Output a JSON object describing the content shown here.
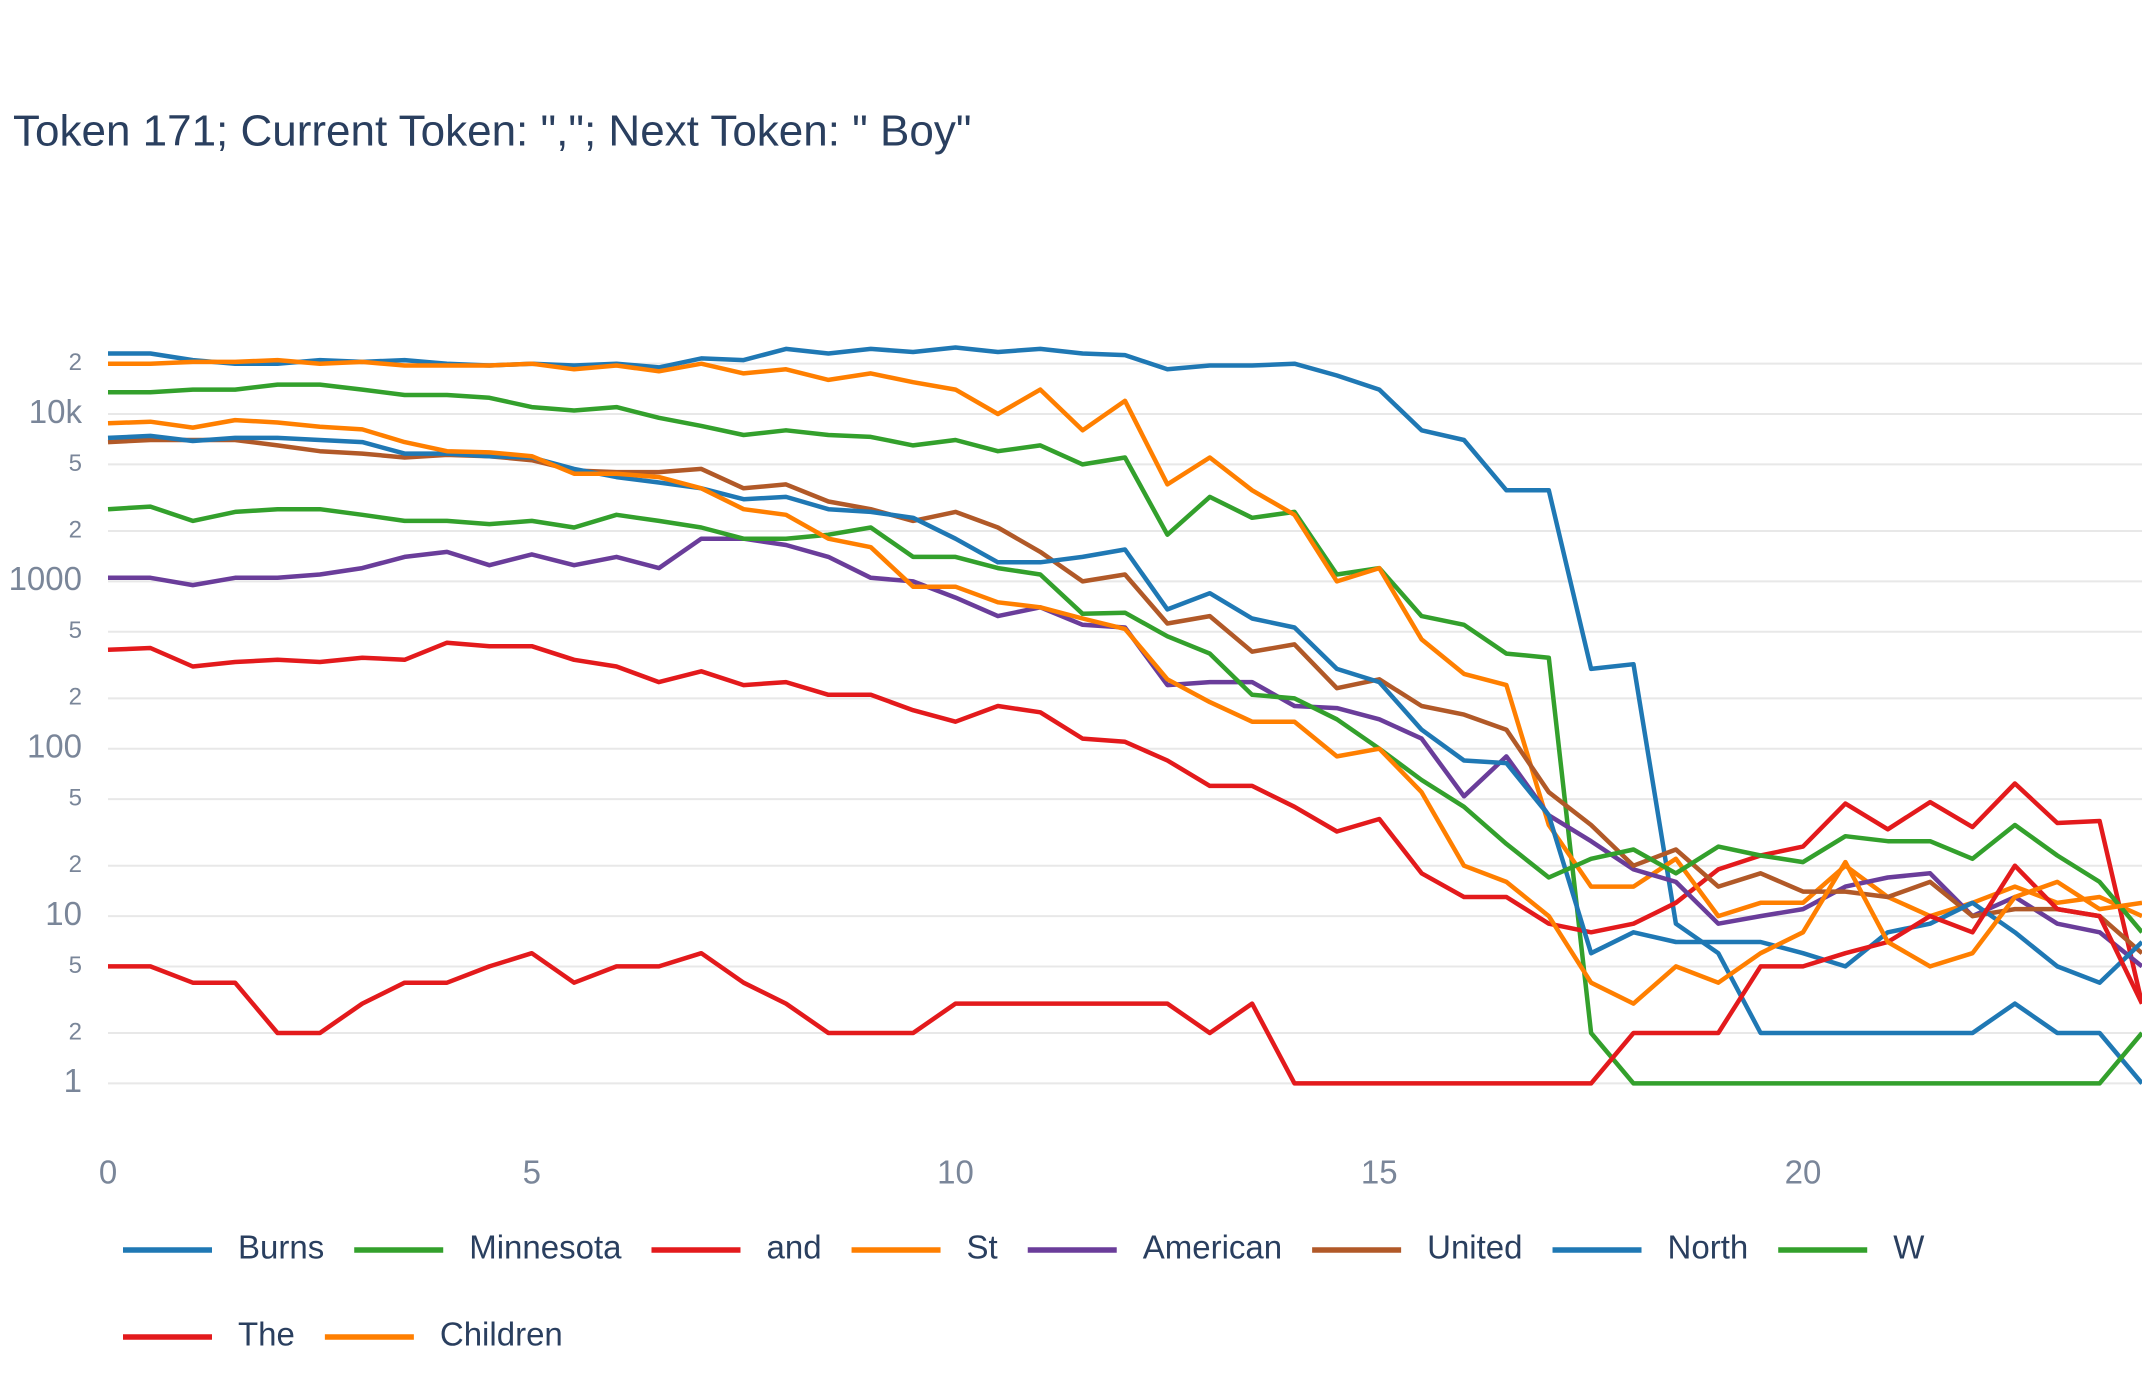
{
  "chart_data": {
    "type": "line",
    "title": "Token 171; Current Token: \",\"; Next Token: \" Boy\"",
    "log_y": true,
    "grid": true,
    "x": [
      0,
      0.5,
      1,
      1.5,
      2,
      2.5,
      3,
      3.5,
      4,
      4.5,
      5,
      5.5,
      6,
      6.5,
      7,
      7.5,
      8,
      8.5,
      9,
      9.5,
      10,
      10.5,
      11,
      11.5,
      12,
      12.5,
      13,
      13.5,
      14,
      14.5,
      15,
      15.5,
      16,
      16.5,
      17,
      17.5,
      18,
      18.5,
      19,
      19.5,
      20,
      20.5,
      21,
      21.5,
      22,
      22.5,
      23,
      23.5,
      24
    ],
    "xlim": [
      0,
      24
    ],
    "xticks": [
      0,
      5,
      10,
      15,
      20
    ],
    "ylim": [
      0.4,
      35000
    ],
    "yticks": [
      1,
      2,
      5,
      10,
      {
        "value": 20,
        "label": "2"
      },
      {
        "value": 50,
        "label": "5"
      },
      100,
      {
        "value": 200,
        "label": "2"
      },
      {
        "value": 500,
        "label": "5"
      },
      1000,
      {
        "value": 2000,
        "label": "2"
      },
      {
        "value": 5000,
        "label": "5"
      },
      {
        "value": 10000,
        "label": "10k"
      },
      {
        "value": 20000,
        "label": "2"
      }
    ],
    "series": [
      {
        "name": "Burns",
        "color": "#1f78b4",
        "values": [
          23000,
          23000,
          21000,
          20000,
          20000,
          21000,
          20500,
          21000,
          20000,
          19500,
          20000,
          19500,
          20000,
          19000,
          21500,
          21000,
          24500,
          23000,
          24500,
          23500,
          25000,
          23500,
          24500,
          23000,
          22500,
          18500,
          19500,
          19500,
          20000,
          17000,
          14000,
          8000,
          7000,
          3500,
          3500,
          300,
          320,
          9,
          6,
          2,
          2,
          2,
          2,
          2,
          2,
          3,
          2,
          2,
          1
        ]
      },
      {
        "name": "Minnesota",
        "color": "#33a02c",
        "values": [
          13500,
          13500,
          14000,
          14000,
          15000,
          15000,
          14000,
          13000,
          13000,
          12500,
          11000,
          10500,
          11000,
          9500,
          8500,
          7500,
          8000,
          7500,
          7300,
          6500,
          7000,
          6000,
          6500,
          5000,
          5500,
          1900,
          3200,
          2400,
          2600,
          1100,
          1200,
          620,
          550,
          370,
          350,
          2,
          1,
          1,
          1,
          1,
          1,
          1,
          1,
          1,
          1,
          1,
          1,
          1,
          2
        ]
      },
      {
        "name": "and",
        "color": "#e31a1c",
        "values": [
          390,
          400,
          310,
          330,
          340,
          330,
          350,
          340,
          430,
          410,
          410,
          340,
          310,
          250,
          290,
          240,
          250,
          210,
          210,
          170,
          145,
          180,
          165,
          115,
          110,
          85,
          60,
          60,
          45,
          32,
          38,
          18,
          13,
          13,
          9,
          8,
          9,
          12,
          19,
          23,
          26,
          47,
          33,
          48,
          34,
          62,
          36,
          37,
          3
        ]
      },
      {
        "name": "St",
        "color": "#ff7f00",
        "values": [
          20000,
          20000,
          20500,
          20500,
          21000,
          20000,
          20500,
          19500,
          19500,
          19500,
          20000,
          18500,
          19500,
          18000,
          20000,
          17500,
          18500,
          16000,
          17500,
          15500,
          14000,
          10000,
          14000,
          8000,
          12000,
          3800,
          5500,
          3500,
          2500,
          1000,
          1200,
          450,
          280,
          240,
          35,
          15,
          15,
          22,
          10,
          12,
          12,
          20,
          13,
          10,
          12,
          15,
          12,
          13,
          10
        ]
      },
      {
        "name": "American",
        "color": "#6a3d9a",
        "values": [
          1050,
          1050,
          950,
          1050,
          1050,
          1100,
          1200,
          1400,
          1500,
          1250,
          1450,
          1250,
          1400,
          1200,
          1800,
          1800,
          1650,
          1400,
          1050,
          1000,
          800,
          620,
          700,
          550,
          530,
          240,
          250,
          250,
          180,
          175,
          150,
          115,
          52,
          90,
          40,
          28,
          19,
          16,
          9,
          10,
          11,
          15,
          17,
          18,
          10,
          13,
          9,
          8,
          5
        ]
      },
      {
        "name": "United",
        "color": "#b15928",
        "values": [
          6800,
          7000,
          7000,
          7000,
          6500,
          6000,
          5800,
          5500,
          5700,
          5600,
          5300,
          4600,
          4500,
          4500,
          4700,
          3600,
          3800,
          3000,
          2700,
          2300,
          2600,
          2100,
          1500,
          1000,
          1100,
          560,
          620,
          380,
          420,
          230,
          260,
          180,
          160,
          130,
          55,
          35,
          20,
          25,
          15,
          18,
          14,
          14,
          13,
          16,
          10,
          11,
          11,
          10,
          6
        ]
      },
      {
        "name": "North",
        "color": "#1f78b4",
        "values": [
          7200,
          7400,
          6900,
          7200,
          7200,
          7000,
          6800,
          5800,
          5800,
          5600,
          5500,
          4700,
          4200,
          3900,
          3600,
          3100,
          3200,
          2700,
          2600,
          2400,
          1800,
          1300,
          1300,
          1400,
          1550,
          680,
          850,
          600,
          530,
          300,
          250,
          130,
          85,
          82,
          40,
          6,
          8,
          7,
          7,
          7,
          6,
          5,
          8,
          9,
          12,
          8,
          5,
          4,
          7
        ]
      },
      {
        "name": "W",
        "color": "#33a02c",
        "values": [
          2700,
          2800,
          2300,
          2600,
          2700,
          2700,
          2500,
          2300,
          2300,
          2200,
          2300,
          2100,
          2500,
          2300,
          2100,
          1800,
          1800,
          1900,
          2100,
          1400,
          1400,
          1200,
          1100,
          640,
          650,
          470,
          370,
          210,
          200,
          150,
          100,
          65,
          45,
          27,
          17,
          22,
          25,
          18,
          26,
          23,
          21,
          30,
          28,
          28,
          22,
          35,
          23,
          16,
          8
        ]
      },
      {
        "name": "The",
        "color": "#e31a1c",
        "values": [
          5,
          5,
          4,
          4,
          2,
          2,
          3,
          4,
          4,
          5,
          6,
          4,
          5,
          5,
          6,
          4,
          3,
          2,
          2,
          2,
          3,
          3,
          3,
          3,
          3,
          3,
          2,
          3,
          1,
          1,
          1,
          1,
          1,
          1,
          1,
          1,
          2,
          2,
          2,
          5,
          5,
          6,
          7,
          10,
          8,
          20,
          11,
          10,
          3
        ]
      },
      {
        "name": "Children",
        "color": "#ff7f00",
        "values": [
          8800,
          9000,
          8300,
          9200,
          8900,
          8400,
          8100,
          6800,
          6000,
          5900,
          5600,
          4400,
          4400,
          4200,
          3600,
          2700,
          2500,
          1800,
          1600,
          930,
          930,
          750,
          700,
          600,
          520,
          260,
          190,
          145,
          145,
          90,
          100,
          55,
          20,
          16,
          10,
          4,
          3,
          5,
          4,
          6,
          8,
          21,
          7,
          5,
          6,
          13,
          16,
          11,
          12
        ]
      }
    ]
  }
}
